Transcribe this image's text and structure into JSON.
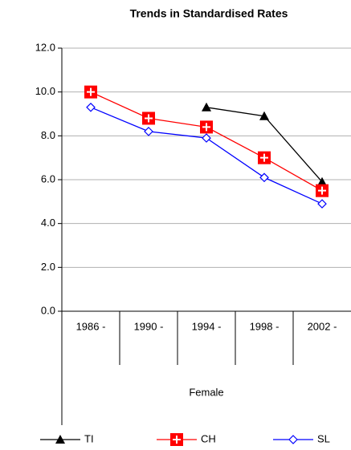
{
  "chart_data": {
    "type": "line",
    "title": "Trends in Standardised Rates",
    "categories": [
      "1986 -",
      "1990 -",
      "1994 -",
      "1998 -",
      "2002 -"
    ],
    "x_group_label": "Female",
    "series": [
      {
        "name": "TI",
        "color": "#000000",
        "marker": "triangle",
        "values": [
          null,
          null,
          9.3,
          8.9,
          5.9
        ]
      },
      {
        "name": "CH",
        "color": "#ff0000",
        "marker": "square-plus",
        "values": [
          10.0,
          8.8,
          8.4,
          7.0,
          5.5
        ]
      },
      {
        "name": "SL",
        "color": "#0000ff",
        "marker": "diamond",
        "values": [
          9.3,
          8.2,
          7.9,
          6.1,
          4.9
        ]
      }
    ],
    "ylim": [
      0,
      12
    ],
    "yticks": [
      {
        "value": 0,
        "label": "0.0"
      },
      {
        "value": 2,
        "label": "2.0"
      },
      {
        "value": 4,
        "label": "4.0"
      },
      {
        "value": 6,
        "label": "6.0"
      },
      {
        "value": 8,
        "label": "8.0"
      },
      {
        "value": 10,
        "label": "10.0"
      },
      {
        "value": 12,
        "label": "12.0"
      }
    ],
    "grid": true,
    "legend": "bottom"
  }
}
